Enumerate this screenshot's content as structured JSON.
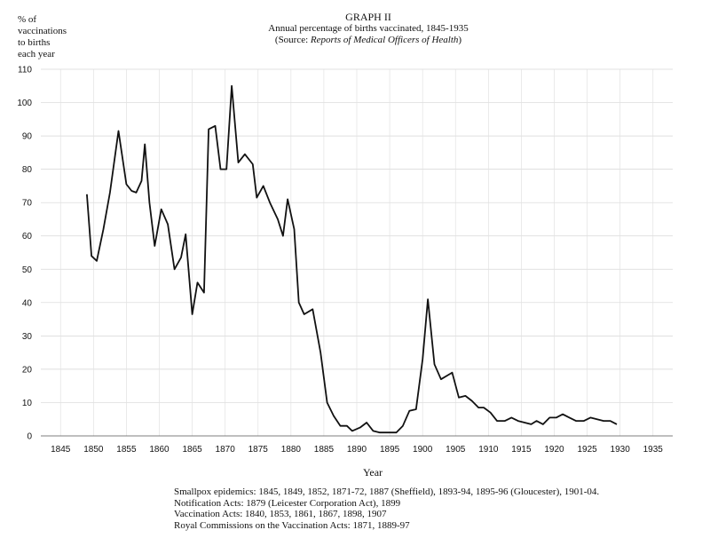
{
  "chart_data": {
    "type": "line",
    "title": "GRAPH II",
    "subtitle": "Annual percentage of births vaccinated, 1845-1935",
    "source_prefix": "(Source: ",
    "source_title": "Reports of Medical Officers of Health",
    "source_suffix": ")",
    "ylabel_lines": [
      "% of",
      "vaccinations",
      "to births",
      "each year"
    ],
    "xlabel": "Year",
    "xlim": [
      1842,
      1938
    ],
    "ylim": [
      0,
      110
    ],
    "x_ticks": [
      1845,
      1850,
      1855,
      1860,
      1865,
      1870,
      1875,
      1880,
      1885,
      1890,
      1895,
      1900,
      1905,
      1910,
      1915,
      1920,
      1925,
      1930,
      1935
    ],
    "y_ticks": [
      0,
      10,
      20,
      30,
      40,
      50,
      60,
      70,
      80,
      90,
      100,
      110
    ],
    "grid": true,
    "series": [
      {
        "color": "#111111",
        "points": [
          [
            1849.0,
            72.5
          ],
          [
            1849.7,
            54
          ],
          [
            1850.5,
            52.5
          ],
          [
            1851.5,
            62
          ],
          [
            1852.5,
            73
          ],
          [
            1853.8,
            91.5
          ],
          [
            1855.0,
            75.5
          ],
          [
            1855.8,
            73.5
          ],
          [
            1856.5,
            73
          ],
          [
            1857.3,
            76.5
          ],
          [
            1857.8,
            87.5
          ],
          [
            1858.5,
            70
          ],
          [
            1859.3,
            57
          ],
          [
            1860.3,
            68
          ],
          [
            1861.3,
            63.5
          ],
          [
            1862.3,
            50
          ],
          [
            1863.3,
            53.5
          ],
          [
            1864.0,
            60.5
          ],
          [
            1865.0,
            36.5
          ],
          [
            1865.8,
            46
          ],
          [
            1866.8,
            43
          ],
          [
            1867.5,
            92
          ],
          [
            1868.5,
            93
          ],
          [
            1869.3,
            80
          ],
          [
            1870.2,
            80
          ],
          [
            1871.0,
            105
          ],
          [
            1872.0,
            82
          ],
          [
            1873.0,
            84.5
          ],
          [
            1874.2,
            81.5
          ],
          [
            1874.8,
            71.5
          ],
          [
            1875.8,
            75
          ],
          [
            1876.8,
            70
          ],
          [
            1878.0,
            65
          ],
          [
            1878.8,
            60
          ],
          [
            1879.5,
            71
          ],
          [
            1880.5,
            62
          ],
          [
            1881.2,
            40
          ],
          [
            1882.0,
            36.5
          ],
          [
            1883.3,
            38
          ],
          [
            1884.5,
            25
          ],
          [
            1885.5,
            10
          ],
          [
            1886.5,
            6
          ],
          [
            1887.5,
            3
          ],
          [
            1888.5,
            3
          ],
          [
            1889.3,
            1.5
          ],
          [
            1890.5,
            2.5
          ],
          [
            1891.5,
            4
          ],
          [
            1892.5,
            1.5
          ],
          [
            1893.5,
            1
          ],
          [
            1895.0,
            1
          ],
          [
            1896.0,
            1
          ],
          [
            1897.0,
            3
          ],
          [
            1898.0,
            7.5
          ],
          [
            1899.0,
            8
          ],
          [
            1900.0,
            23
          ],
          [
            1900.8,
            41
          ],
          [
            1901.8,
            21.5
          ],
          [
            1902.8,
            17
          ],
          [
            1904.5,
            19
          ],
          [
            1905.5,
            11.5
          ],
          [
            1906.5,
            12
          ],
          [
            1907.5,
            10.5
          ],
          [
            1908.5,
            8.5
          ],
          [
            1909.3,
            8.5
          ],
          [
            1910.3,
            7
          ],
          [
            1911.3,
            4.5
          ],
          [
            1912.5,
            4.5
          ],
          [
            1913.5,
            5.5
          ],
          [
            1914.5,
            4.5
          ],
          [
            1916.5,
            3.5
          ],
          [
            1917.3,
            4.5
          ],
          [
            1918.3,
            3.5
          ],
          [
            1919.3,
            5.5
          ],
          [
            1920.3,
            5.5
          ],
          [
            1921.3,
            6.5
          ],
          [
            1922.3,
            5.5
          ],
          [
            1923.3,
            4.5
          ],
          [
            1924.5,
            4.5
          ],
          [
            1925.5,
            5.5
          ],
          [
            1926.5,
            5
          ],
          [
            1927.5,
            4.5
          ],
          [
            1928.5,
            4.5
          ],
          [
            1929.5,
            3.5
          ]
        ]
      }
    ]
  },
  "notes": [
    "Smallpox epidemics: 1845, 1849, 1852, 1871-72, 1887 (Sheffield), 1893-94, 1895-96 (Gloucester), 1901-04.",
    "Notification Acts: 1879 (Leicester Corporation Act), 1899",
    "Vaccination Acts: 1840, 1853, 1861, 1867, 1898, 1907",
    "Royal Commissions on the Vaccination Acts: 1871, 1889-97"
  ]
}
